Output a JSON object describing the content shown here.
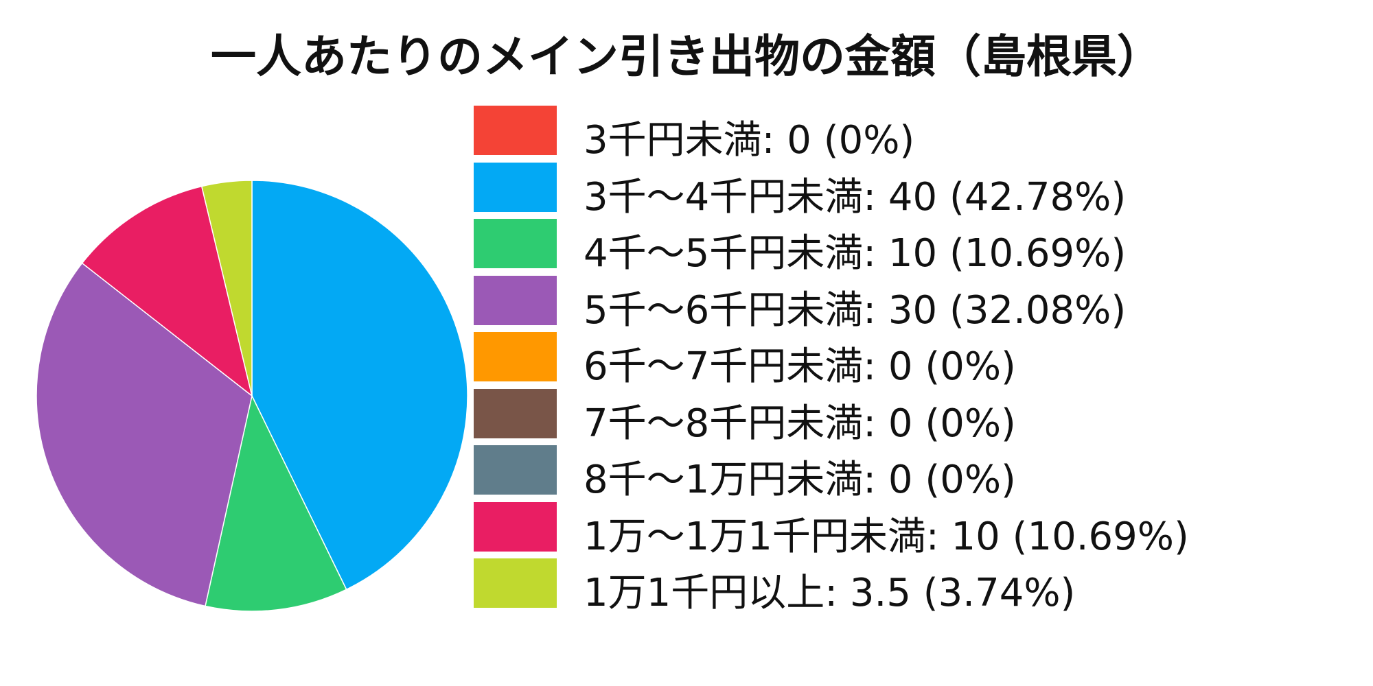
{
  "chart_data": {
    "type": "pie",
    "title": "一人あたりのメイン引き出物の金額（島根県）",
    "legend_position": "right",
    "slice_stroke": "#ffffff",
    "slices": [
      {
        "label": "3千円未満",
        "value": 0,
        "percent": "0%",
        "legend_text": "3千円未満: 0 (0%)",
        "color": "#f44336"
      },
      {
        "label": "3千～4千円未満",
        "value": 40,
        "percent": "42.78%",
        "legend_text": "3千～4千円未満: 40 (42.78%)",
        "color": "#03a9f4"
      },
      {
        "label": "4千～5千円未満",
        "value": 10,
        "percent": "10.69%",
        "legend_text": "4千～5千円未満: 10 (10.69%)",
        "color": "#2ecc71"
      },
      {
        "label": "5千～6千円未満",
        "value": 30,
        "percent": "32.08%",
        "legend_text": "5千～6千円未満: 30 (32.08%)",
        "color": "#9b59b6"
      },
      {
        "label": "6千～7千円未満",
        "value": 0,
        "percent": "0%",
        "legend_text": "6千～7千円未満: 0 (0%)",
        "color": "#ff9800"
      },
      {
        "label": "7千～8千円未満",
        "value": 0,
        "percent": "0%",
        "legend_text": "7千～8千円未満: 0 (0%)",
        "color": "#795548"
      },
      {
        "label": "8千～1万円未満",
        "value": 0,
        "percent": "0%",
        "legend_text": "8千～1万円未満: 0 (0%)",
        "color": "#607d8b"
      },
      {
        "label": "1万～1万1千円未満",
        "value": 10,
        "percent": "10.69%",
        "legend_text": "1万～1万1千円未満: 10 (10.69%)",
        "color": "#e91e63"
      },
      {
        "label": "1万1千円以上",
        "value": 3.5,
        "percent": "3.74%",
        "legend_text": "1万1千円以上: 3.5 (3.74%)",
        "color": "#c0d92f"
      }
    ]
  }
}
